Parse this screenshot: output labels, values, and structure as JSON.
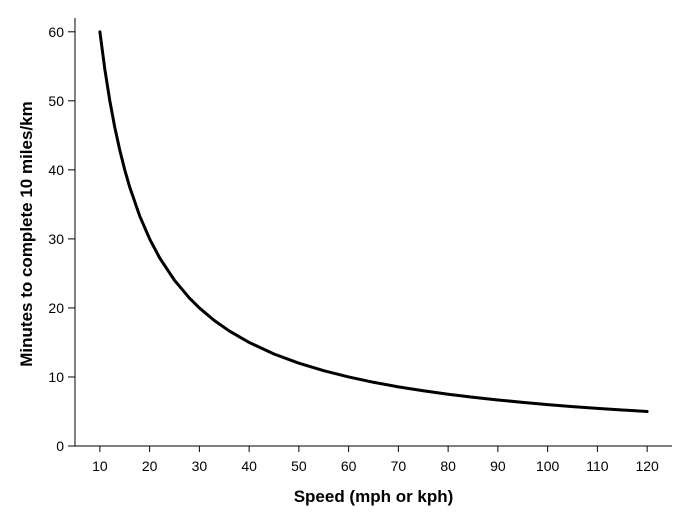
{
  "chart_data": {
    "type": "line",
    "xlabel": "Speed (mph or kph)",
    "ylabel": "Minutes to complete 10 miles/km",
    "xlim": [
      5,
      125
    ],
    "ylim": [
      0,
      62
    ],
    "x_ticks": [
      10,
      20,
      30,
      40,
      50,
      60,
      70,
      80,
      90,
      100,
      110,
      120
    ],
    "y_ticks": [
      0,
      10,
      20,
      30,
      40,
      50,
      60
    ],
    "grid": false,
    "line_color": "#000000",
    "series": [
      {
        "x": [
          10,
          11,
          12,
          13,
          14,
          15,
          16,
          18,
          20,
          22,
          25,
          28,
          30,
          33,
          36,
          40,
          45,
          50,
          55,
          60,
          65,
          70,
          75,
          80,
          85,
          90,
          95,
          100,
          105,
          110,
          115,
          120
        ],
        "y": [
          60,
          54.55,
          50,
          46.15,
          42.86,
          40,
          37.5,
          33.33,
          30,
          27.27,
          24,
          21.43,
          20,
          18.18,
          16.67,
          15,
          13.33,
          12,
          10.91,
          10,
          9.23,
          8.57,
          8,
          7.5,
          7.06,
          6.67,
          6.32,
          6,
          5.71,
          5.45,
          5.22,
          5
        ]
      }
    ]
  }
}
